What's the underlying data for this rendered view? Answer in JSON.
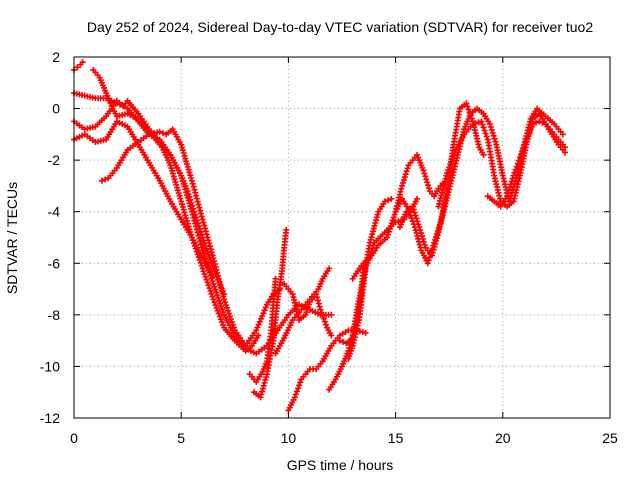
{
  "chart_data": {
    "type": "scatter",
    "title": "Day 252 of 2024, Sidereal Day-to-day VTEC variation (SDTVAR) for receiver tuo2",
    "xlabel": "GPS time / hours",
    "ylabel": "SDTVAR / TECUs",
    "xlim": [
      0,
      25
    ],
    "ylim": [
      -12,
      2
    ],
    "xticks": [
      0,
      5,
      10,
      15,
      20,
      25
    ],
    "yticks": [
      -12,
      -10,
      -8,
      -6,
      -4,
      -2,
      0,
      2
    ],
    "grid": true,
    "legend": "none",
    "marker": "+",
    "color": "#ff0000",
    "series": [
      {
        "x": [
          0.0,
          0.15,
          0.3,
          0.4
        ],
        "y": [
          1.5,
          1.6,
          1.7,
          1.8
        ]
      },
      {
        "x": [
          0.0,
          0.5,
          1.0,
          1.5,
          2.0,
          2.3,
          2.5,
          3.0,
          3.5,
          4.0,
          4.5,
          5.0,
          5.5,
          6.0,
          6.5,
          7.0,
          7.5,
          8.0,
          8.3,
          8.6
        ],
        "y": [
          0.6,
          0.5,
          0.4,
          0.4,
          0.2,
          0.1,
          0.3,
          -0.2,
          -0.8,
          -1.3,
          -2.2,
          -3.6,
          -5.0,
          -6.2,
          -7.4,
          -8.5,
          -9.0,
          -9.4,
          -9.2,
          -8.8
        ]
      },
      {
        "x": [
          0.0,
          0.5,
          1.0,
          1.5,
          2.0,
          2.5,
          3.0,
          3.5,
          4.0,
          4.5,
          5.0,
          5.5,
          6.0,
          6.5,
          7.0,
          7.5,
          8.0,
          8.5,
          9.0,
          9.5,
          10.0,
          10.5,
          11.0,
          11.5,
          12.0
        ],
        "y": [
          -0.5,
          -0.8,
          -0.7,
          -0.3,
          0.3,
          0.0,
          -0.5,
          -1.0,
          -1.2,
          -1.8,
          -2.6,
          -4.0,
          -5.5,
          -6.8,
          -8.0,
          -8.8,
          -9.3,
          -9.5,
          -9.2,
          -8.6,
          -8.0,
          -7.6,
          -7.8,
          -8.0,
          -8.0
        ]
      },
      {
        "x": [
          0.0,
          0.5,
          1.0,
          1.5,
          2.0,
          2.5,
          3.0,
          3.5,
          4.0,
          4.5,
          5.0,
          5.5,
          6.0,
          6.5
        ],
        "y": [
          -1.2,
          -1.0,
          -1.3,
          -1.2,
          -0.5,
          -0.7,
          -1.4,
          -2.1,
          -2.8,
          -3.6,
          -4.3,
          -5.0,
          -5.8,
          -6.5
        ]
      },
      {
        "x": [
          1.3,
          1.6,
          2.0,
          2.5,
          3.0,
          3.5,
          4.0,
          4.3,
          4.6,
          5.0,
          5.5,
          6.0,
          6.5,
          7.0,
          7.5,
          8.0,
          8.5,
          9.0,
          9.3,
          9.6
        ],
        "y": [
          -2.8,
          -2.7,
          -2.3,
          -1.6,
          -1.3,
          -1.0,
          -0.9,
          -1.0,
          -0.8,
          -1.4,
          -2.8,
          -4.3,
          -5.8,
          -7.4,
          -8.6,
          -9.2,
          -8.6,
          -7.6,
          -7.2,
          -7.0
        ]
      },
      {
        "x": [
          0.9,
          1.2,
          1.5,
          1.8,
          2.0,
          2.5,
          3.0,
          3.5,
          4.0,
          4.5,
          5.0,
          5.3,
          5.6,
          6.0,
          6.5,
          7.0
        ],
        "y": [
          1.5,
          1.2,
          0.6,
          0.0,
          -0.3,
          -0.2,
          -0.4,
          -0.9,
          -1.4,
          -1.8,
          -2.6,
          -3.2,
          -4.0,
          -5.0,
          -6.2,
          -7.2
        ]
      },
      {
        "x": [
          8.2,
          8.5,
          8.8,
          9.0,
          9.2,
          9.3,
          9.4
        ],
        "y": [
          -10.3,
          -10.6,
          -10.2,
          -9.8,
          -8.6,
          -7.5,
          -6.6
        ]
      },
      {
        "x": [
          8.4,
          8.7,
          9.0,
          9.3,
          9.5,
          9.7,
          9.8,
          9.9
        ],
        "y": [
          -11.0,
          -11.2,
          -10.3,
          -9.0,
          -7.4,
          -6.3,
          -5.4,
          -4.7
        ]
      },
      {
        "x": [
          9.8,
          10.2,
          10.5,
          10.8,
          11.0,
          11.3,
          11.5,
          11.8,
          12.0
        ],
        "y": [
          -6.8,
          -7.2,
          -8.2,
          -8.0,
          -7.5,
          -7.2,
          -7.8,
          -8.5,
          -8.8
        ]
      },
      {
        "x": [
          10.0,
          10.3,
          10.6,
          11.0,
          11.3,
          11.6,
          12.0,
          12.4,
          12.8,
          13.2,
          13.6
        ],
        "y": [
          -11.7,
          -11.2,
          -10.5,
          -10.1,
          -10.1,
          -9.8,
          -9.2,
          -8.8,
          -8.6,
          -8.6,
          -8.7
        ]
      },
      {
        "x": [
          9.4,
          9.8,
          10.2,
          10.6,
          11.0,
          11.4,
          11.6,
          11.9
        ],
        "y": [
          -9.5,
          -8.9,
          -8.2,
          -7.8,
          -7.4,
          -7.0,
          -6.6,
          -6.2
        ]
      },
      {
        "x": [
          11.9,
          12.2,
          12.5,
          12.8,
          13.0,
          13.2,
          13.5,
          13.8,
          14.2,
          14.5,
          14.8
        ],
        "y": [
          -10.9,
          -10.5,
          -10.0,
          -9.4,
          -8.8,
          -7.8,
          -6.6,
          -5.2,
          -4.0,
          -3.6,
          -3.5
        ]
      },
      {
        "x": [
          12.4,
          12.7,
          13.0,
          13.2,
          13.4,
          13.5
        ],
        "y": [
          -9.0,
          -9.1,
          -8.9,
          -8.3,
          -7.2,
          -6.0
        ]
      },
      {
        "x": [
          12.8,
          13.0,
          13.3,
          13.6,
          14.0,
          14.5,
          15.0,
          15.4,
          15.7,
          16.0
        ],
        "y": [
          -9.7,
          -9.2,
          -8.2,
          -6.2,
          -5.2,
          -4.8,
          -4.4,
          -4.3,
          -4.0,
          -3.5
        ]
      },
      {
        "x": [
          13.0,
          13.4,
          13.8,
          14.2,
          14.6,
          15.0,
          15.3,
          15.6,
          16.0,
          16.3,
          16.6,
          16.8,
          17.0,
          17.2
        ],
        "y": [
          -6.6,
          -6.1,
          -5.8,
          -5.3,
          -5.0,
          -4.0,
          -3.0,
          -2.2,
          -1.8,
          -2.4,
          -3.2,
          -3.4,
          -3.1,
          -2.9
        ]
      },
      {
        "x": [
          15.0,
          15.3,
          15.6,
          15.9,
          16.2,
          16.5,
          16.8,
          17.1,
          17.4,
          17.7,
          18.0,
          18.3,
          18.6,
          18.9,
          19.1
        ],
        "y": [
          -4.0,
          -3.5,
          -3.9,
          -4.6,
          -5.5,
          -6.0,
          -5.2,
          -4.4,
          -3.2,
          -1.4,
          0.0,
          0.2,
          -0.5,
          -1.5,
          -1.8
        ]
      },
      {
        "x": [
          15.2,
          15.5,
          15.8,
          16.1,
          16.4,
          16.7,
          17.0,
          17.3,
          17.6,
          17.9,
          18.2,
          18.5,
          18.8,
          19.1,
          19.4,
          19.7,
          20.0,
          20.3,
          20.6,
          21.0,
          21.3,
          21.6,
          22.0,
          22.4,
          22.8
        ],
        "y": [
          -4.6,
          -4.0,
          -3.8,
          -4.6,
          -5.4,
          -5.7,
          -4.8,
          -3.8,
          -2.8,
          -1.8,
          -0.8,
          -0.2,
          0.0,
          -0.2,
          -0.6,
          -1.4,
          -2.6,
          -3.6,
          -2.8,
          -1.4,
          -0.4,
          0.0,
          -0.3,
          -0.6,
          -1.0
        ]
      },
      {
        "x": [
          17.0,
          17.4,
          17.8,
          18.2,
          18.6,
          19.0,
          19.3,
          19.6,
          19.9,
          20.2,
          20.5,
          20.8,
          21.1,
          21.4,
          21.7,
          22.0,
          22.3,
          22.6,
          22.9
        ],
        "y": [
          -3.8,
          -2.5,
          -1.6,
          -1.0,
          -0.6,
          -0.5,
          -1.2,
          -2.6,
          -3.6,
          -3.8,
          -3.6,
          -2.6,
          -1.4,
          -0.4,
          -0.2,
          -0.6,
          -1.0,
          -1.4,
          -1.7
        ]
      },
      {
        "x": [
          19.3,
          19.6,
          19.9,
          20.2,
          20.5,
          20.8,
          21.1,
          21.4,
          21.7,
          22.0,
          22.3,
          22.6,
          22.9
        ],
        "y": [
          -3.4,
          -3.6,
          -3.8,
          -3.4,
          -2.6,
          -1.9,
          -1.2,
          -0.6,
          -0.5,
          -0.6,
          -0.9,
          -1.2,
          -1.5
        ]
      }
    ]
  }
}
